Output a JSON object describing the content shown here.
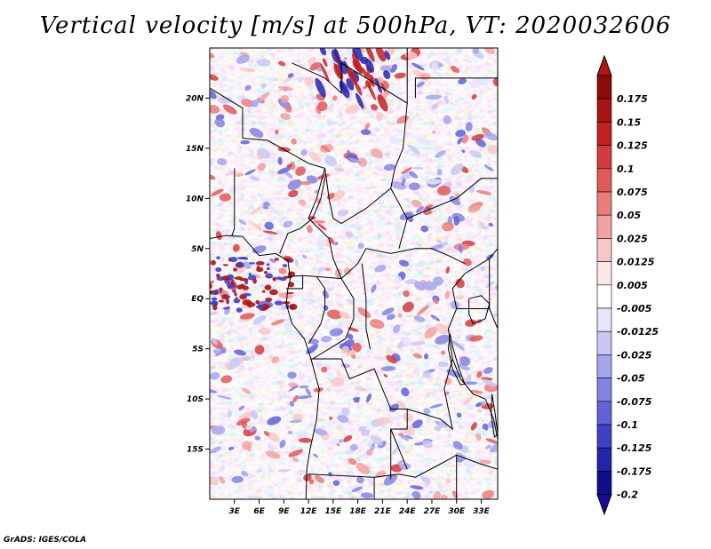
{
  "title": "Vertical velocity [m/s] at 500hPa, VT: 2020032606",
  "credit": "GrADS: IGES/COLA",
  "map": {
    "lat_labels": [
      "20N",
      "15N",
      "10N",
      "5N",
      "EQ",
      "5S",
      "10S",
      "15S"
    ],
    "lat_values": [
      20,
      15,
      10,
      5,
      0,
      -5,
      -10,
      -15
    ],
    "lon_labels": [
      "3E",
      "6E",
      "9E",
      "12E",
      "15E",
      "18E",
      "21E",
      "24E",
      "27E",
      "30E",
      "33E"
    ],
    "lon_values": [
      3,
      6,
      9,
      12,
      15,
      18,
      21,
      24,
      27,
      30,
      33
    ],
    "lon_range": [
      0,
      35
    ],
    "lat_range": [
      -20,
      25
    ]
  },
  "colorbar": {
    "labels": [
      "0.175",
      "0.15",
      "0.125",
      "0.1",
      "0.075",
      "0.05",
      "0.025",
      "0.0125",
      "0.005",
      "-0.005",
      "-0.0125",
      "-0.025",
      "-0.05",
      "-0.075",
      "-0.1",
      "-0.125",
      "-0.175",
      "-0.2"
    ],
    "colors": [
      "#8b0a0a",
      "#a81414",
      "#c02222",
      "#d23c3c",
      "#e05a5a",
      "#ea7c7c",
      "#f2a2a2",
      "#f8c8c8",
      "#fce6e6",
      "#ffffff",
      "#e6e6fb",
      "#c8c8f4",
      "#a6a6ec",
      "#8484e2",
      "#6262d6",
      "#4040c4",
      "#2424aa",
      "#0e0e8a"
    ],
    "top_arrow_color": "#b01818",
    "bottom_arrow_color": "#1a0a9a"
  }
}
